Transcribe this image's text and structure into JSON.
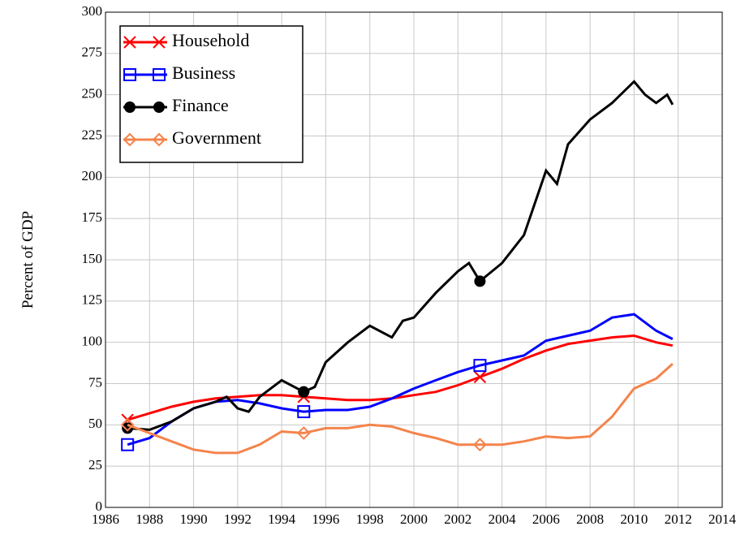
{
  "chart_data": {
    "type": "line",
    "y_label": "Percent of GDP",
    "xlim": [
      1986,
      2014
    ],
    "xticks": [
      1986,
      1988,
      1990,
      1992,
      1994,
      1996,
      1998,
      2000,
      2002,
      2004,
      2006,
      2008,
      2010,
      2012,
      2014
    ],
    "ylim": [
      0,
      300
    ],
    "yticks": [
      0,
      25,
      50,
      75,
      100,
      125,
      150,
      175,
      200,
      225,
      250,
      275,
      300
    ],
    "grid": true,
    "legend": "top-left",
    "series": [
      {
        "name": "Household",
        "color": "#ff0000",
        "marker": "x",
        "x": [
          1987,
          1988,
          1989,
          1990,
          1991,
          1992,
          1993,
          1994,
          1995,
          1996,
          1997,
          1998,
          1999,
          2000,
          2001,
          2002,
          2003,
          2004,
          2005,
          2006,
          2007,
          2008,
          2009,
          2010,
          2011,
          2011.75
        ],
        "values": [
          53,
          57,
          61,
          64,
          66,
          67,
          68,
          68,
          67,
          66,
          65,
          65,
          66,
          68,
          70,
          74,
          79,
          84,
          90,
          95,
          99,
          101,
          103,
          104,
          100,
          98
        ]
      },
      {
        "name": "Business",
        "color": "#0000ff",
        "marker": "square",
        "x": [
          1987,
          1988,
          1989,
          1990,
          1991,
          1992,
          1993,
          1994,
          1995,
          1996,
          1997,
          1998,
          1999,
          2000,
          2001,
          2002,
          2003,
          2004,
          2005,
          2006,
          2007,
          2008,
          2009,
          2010,
          2011,
          2011.75
        ],
        "values": [
          38,
          42,
          52,
          60,
          64,
          65,
          63,
          60,
          58,
          59,
          59,
          61,
          66,
          72,
          77,
          82,
          86,
          89,
          92,
          101,
          104,
          107,
          115,
          117,
          107,
          102
        ]
      },
      {
        "name": "Finance",
        "color": "#000000",
        "marker": "circle",
        "x": [
          1987,
          1988,
          1989,
          1990,
          1991,
          1991.5,
          1992,
          1992.5,
          1993,
          1994,
          1995,
          1995.5,
          1996,
          1997,
          1998,
          1999,
          1999.5,
          2000,
          2001,
          2002,
          2002.5,
          2003,
          2004,
          2005,
          2006,
          2006.5,
          2007,
          2008,
          2009,
          2010,
          2010.5,
          2011,
          2011.5,
          2011.75
        ],
        "values": [
          48,
          47,
          52,
          60,
          64,
          67,
          60,
          58,
          67,
          77,
          70,
          73,
          88,
          100,
          110,
          103,
          113,
          115,
          130,
          143,
          148,
          137,
          148,
          165,
          204,
          196,
          220,
          235,
          245,
          258,
          250,
          245,
          250,
          244
        ]
      },
      {
        "name": "Government",
        "color": "#f4844c",
        "marker": "diamond",
        "x": [
          1987,
          1988,
          1989,
          1990,
          1991,
          1992,
          1993,
          1994,
          1995,
          1996,
          1997,
          1998,
          1999,
          2000,
          2001,
          2002,
          2003,
          2004,
          2005,
          2006,
          2007,
          2008,
          2009,
          2010,
          2011,
          2011.75
        ],
        "values": [
          50,
          45,
          40,
          35,
          33,
          33,
          38,
          46,
          45,
          48,
          48,
          50,
          49,
          45,
          42,
          38,
          38,
          38,
          40,
          43,
          42,
          43,
          55,
          72,
          78,
          87
        ]
      }
    ]
  }
}
